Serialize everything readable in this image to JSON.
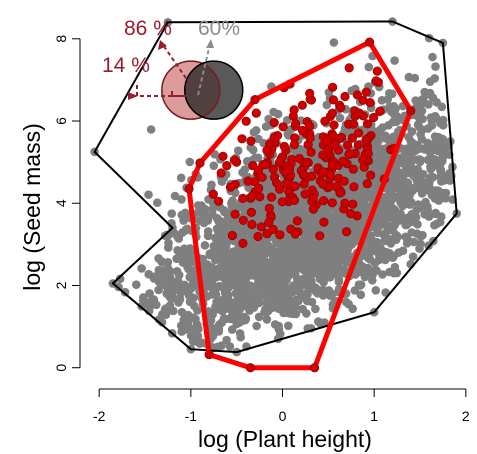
{
  "chart_data": {
    "type": "scatter",
    "xlabel": "log (Plant height)",
    "ylabel": "log (Seed mass)",
    "xlim": [
      -2.1,
      2.1
    ],
    "ylim": [
      -0.25,
      8.7
    ],
    "x_ticks": [
      -2,
      -1,
      0,
      1,
      2
    ],
    "y_ticks": [
      0,
      2,
      4,
      6,
      8
    ],
    "grid": false,
    "colors": {
      "background_points": "#7f7f7f",
      "highlight_points": "#cc0000",
      "global_hull": "#000000",
      "subset_hull": "#ff0000",
      "annotation_red": "#9b1c2e",
      "annotation_gray": "#8c8c8c"
    },
    "global_hull": [
      [
        -1.25,
        8.4
      ],
      [
        -2.05,
        5.25
      ],
      [
        -1.2,
        3.4
      ],
      [
        -1.85,
        2.05
      ],
      [
        -1.0,
        0.45
      ],
      [
        -0.5,
        0.38
      ],
      [
        1.0,
        1.35
      ],
      [
        1.9,
        3.75
      ],
      [
        1.75,
        7.9
      ],
      [
        1.2,
        8.42
      ]
    ],
    "subset_hull": [
      [
        -1.02,
        4.35
      ],
      [
        -0.9,
        4.98
      ],
      [
        -0.3,
        6.52
      ],
      [
        0.95,
        7.92
      ],
      [
        1.4,
        6.25
      ],
      [
        0.35,
        0.0
      ],
      [
        -0.35,
        0.0
      ],
      [
        -0.8,
        0.32
      ]
    ],
    "annotations": {
      "pct_86": "86 %",
      "pct_60": "60%",
      "pct_14": "14 %"
    },
    "venn": {
      "left_circle": {
        "x": -1.0,
        "y": 6.75,
        "fill": "#c04a4a",
        "opacity": 0.55
      },
      "right_circle": {
        "x": -0.75,
        "y": 6.75,
        "fill": "#222222",
        "opacity": 0.75
      }
    }
  }
}
